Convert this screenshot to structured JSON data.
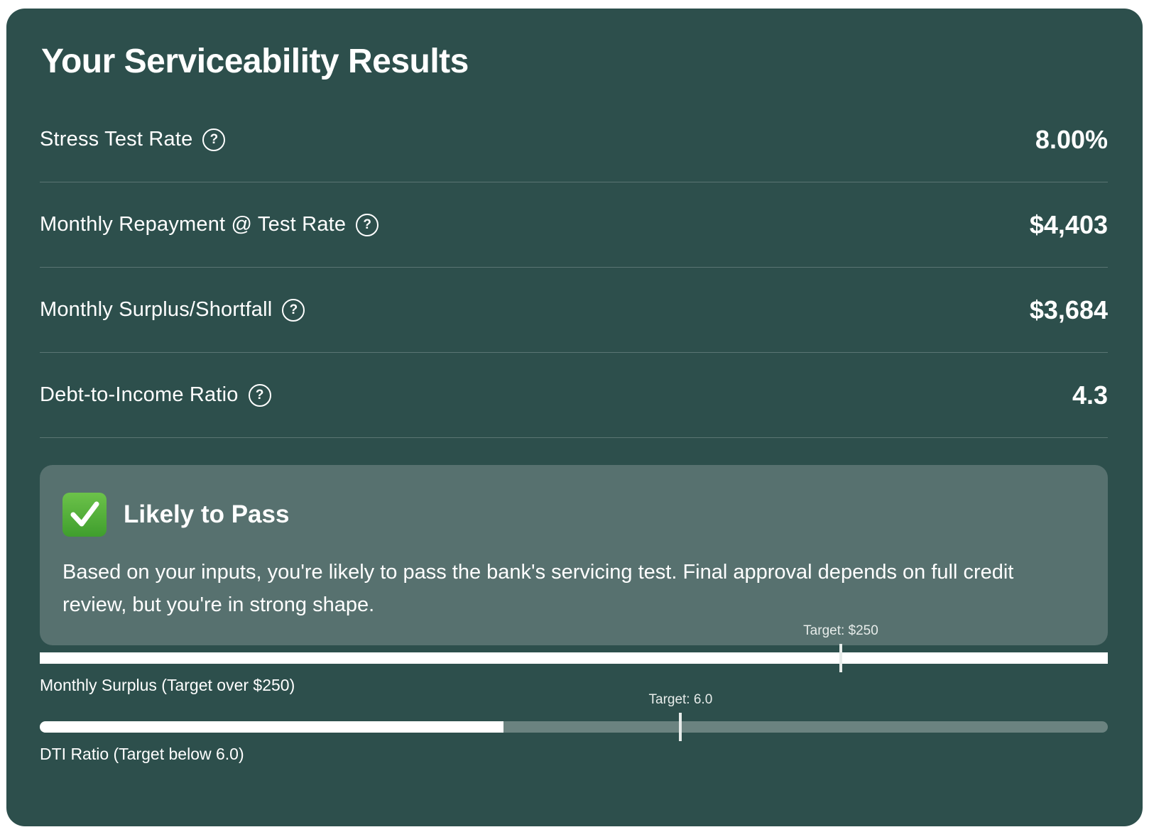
{
  "title": "Your Serviceability Results",
  "rows": [
    {
      "label": "Stress Test Rate",
      "value": "8.00%",
      "icon": "help-circle-icon"
    },
    {
      "label": "Monthly Repayment @ Test Rate",
      "value": "$4,403",
      "icon": "help-circle-icon"
    },
    {
      "label": "Monthly Surplus/Shortfall",
      "value": "$3,684",
      "icon": "help-circle-icon"
    },
    {
      "label": "Debt-to-Income Ratio",
      "value": "4.3",
      "icon": "help-circle-icon"
    }
  ],
  "help_glyph": "?",
  "status": {
    "icon": "check-mark-button-icon",
    "title": "Likely to Pass",
    "message": "Based on your inputs, you're likely to pass the bank's servicing test. Final approval depends on full credit review, but you're in strong shape.",
    "color": "#57716f"
  },
  "bars": {
    "surplus": {
      "label": "Monthly Surplus (Target over $250)",
      "target_label": "Target: $250",
      "fill_fraction": 1.0,
      "target_fraction": 0.75
    },
    "dti": {
      "label": "DTI Ratio (Target below 6.0)",
      "target_label": "Target: 6.0",
      "fill_fraction": 0.434,
      "target_fraction": 0.6
    }
  },
  "colors": {
    "card_background": "#2d4f4c",
    "track": "#6b8380",
    "fill": "#ffffff",
    "check_green": "#4caf37"
  }
}
